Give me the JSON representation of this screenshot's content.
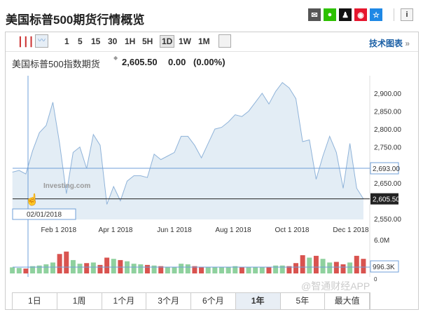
{
  "title": "美国标普500期货行情概览",
  "share_icons": [
    {
      "name": "email-icon",
      "color": "#555555",
      "glyph": "✉"
    },
    {
      "name": "wechat-icon",
      "color": "#2dc100",
      "glyph": "●"
    },
    {
      "name": "qq-icon",
      "color": "#111111",
      "glyph": "♟"
    },
    {
      "name": "weibo-icon",
      "color": "#e6162d",
      "glyph": "◉"
    },
    {
      "name": "favorite-icon",
      "color": "#1e88e5",
      "glyph": "☆"
    }
  ],
  "info_label": "i",
  "toolbar": {
    "intervals": [
      "1",
      "5",
      "15",
      "30",
      "1H",
      "5H",
      "1D",
      "1W",
      "1M"
    ],
    "selected": "1D",
    "tech_chart": "技术图表",
    "tech_arrow": "»"
  },
  "instrument": {
    "name": "美国标普500指数期货",
    "price": "2,605.50",
    "change": "0.00",
    "change_pct": "(0.00%)"
  },
  "crosshair": {
    "date": "02/01/2018",
    "value": "2,693.00",
    "volume": "996.3K"
  },
  "watermark": "Investing.com",
  "chart_data": {
    "type": "line",
    "y_ticks": [
      "2,900.00",
      "2,850.00",
      "2,800.00",
      "2,750.00",
      "2,650.00",
      "2,550.00"
    ],
    "ylim": [
      2550,
      2920
    ],
    "x_ticks": [
      "Feb 1 2018",
      "Apr 1 2018",
      "Jun 1 2018",
      "Aug 1 2018",
      "Oct 1 2018",
      "Dec 1 2018"
    ],
    "last_price": "2,605.50",
    "volume_ticks": [
      "6.0M",
      "0"
    ],
    "colors": {
      "line": "#8fb3d9",
      "fill": "#e3edf5",
      "up": "#8fd19e",
      "down": "#d9534f"
    },
    "dates": [
      "2017-12-15",
      "2017-12-22",
      "2017-12-29",
      "2018-01-05",
      "2018-01-12",
      "2018-01-19",
      "2018-01-26",
      "2018-02-02",
      "2018-02-09",
      "2018-02-16",
      "2018-02-23",
      "2018-03-02",
      "2018-03-09",
      "2018-03-16",
      "2018-03-23",
      "2018-03-30",
      "2018-04-06",
      "2018-04-13",
      "2018-04-20",
      "2018-04-27",
      "2018-05-04",
      "2018-05-11",
      "2018-05-18",
      "2018-05-25",
      "2018-06-01",
      "2018-06-08",
      "2018-06-15",
      "2018-06-22",
      "2018-06-29",
      "2018-07-06",
      "2018-07-13",
      "2018-07-20",
      "2018-07-27",
      "2018-08-03",
      "2018-08-10",
      "2018-08-17",
      "2018-08-24",
      "2018-08-31",
      "2018-09-07",
      "2018-09-14",
      "2018-09-21",
      "2018-09-28",
      "2018-10-05",
      "2018-10-12",
      "2018-10-19",
      "2018-10-26",
      "2018-11-02",
      "2018-11-09",
      "2018-11-16",
      "2018-11-23",
      "2018-11-30",
      "2018-12-07",
      "2018-12-14"
    ],
    "values": [
      2680,
      2685,
      2675,
      2740,
      2790,
      2810,
      2875,
      2760,
      2620,
      2735,
      2750,
      2690,
      2785,
      2755,
      2590,
      2640,
      2600,
      2655,
      2670,
      2670,
      2665,
      2730,
      2715,
      2725,
      2735,
      2780,
      2780,
      2755,
      2720,
      2760,
      2800,
      2805,
      2820,
      2840,
      2835,
      2850,
      2875,
      2900,
      2870,
      2905,
      2930,
      2915,
      2885,
      2765,
      2770,
      2660,
      2725,
      2780,
      2735,
      2635,
      2760,
      2635,
      2605.5
    ],
    "volume_m": [
      1.0,
      0.9,
      0.8,
      1.2,
      1.3,
      1.5,
      1.8,
      3.2,
      3.6,
      2.2,
      1.6,
      1.7,
      1.8,
      1.4,
      2.6,
      2.4,
      2.2,
      2.0,
      1.6,
      1.5,
      1.4,
      1.3,
      1.2,
      1.1,
      1.0,
      1.6,
      1.5,
      1.2,
      1.1,
      1.0,
      1.0,
      1.0,
      1.1,
      1.2,
      1.0,
      1.0,
      1.1,
      1.0,
      1.1,
      1.3,
      1.3,
      1.2,
      1.7,
      3.0,
      2.6,
      2.9,
      2.4,
      1.8,
      1.9,
      1.5,
      1.8,
      2.9,
      2.4
    ]
  },
  "ranges": [
    "1日",
    "1周",
    "1个月",
    "3个月",
    "6个月",
    "1年",
    "5年",
    "最大值"
  ],
  "selected_range": "1年",
  "corner_watermark": "@智通财经APP"
}
